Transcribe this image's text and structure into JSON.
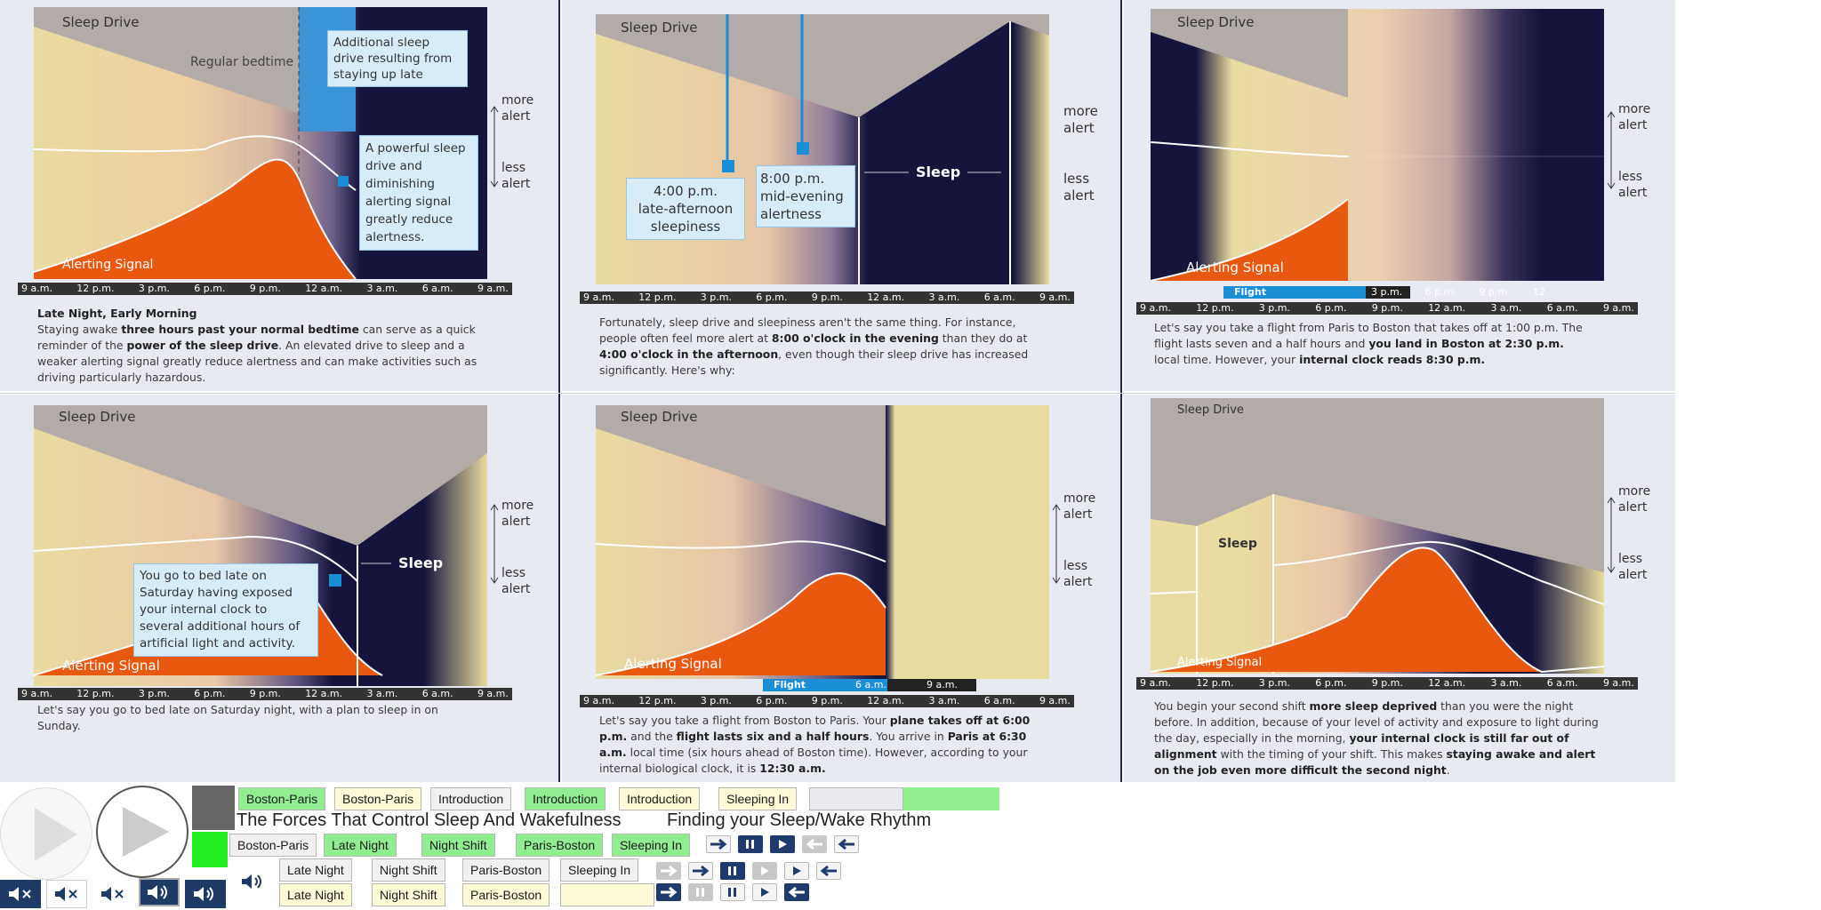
{
  "times_a": [
    "9 a.m.",
    "12 p.m.",
    "3 p.m.",
    "6 p.m.",
    "9 p.m.",
    "12 a.m.",
    "3 a.m.",
    "6 a.m.",
    "9 a.m."
  ],
  "common": {
    "sleep_drive": "Sleep Drive",
    "alerting_signal": "Alerting Signal",
    "more": "more",
    "less": "less",
    "alert": "alert",
    "sleep": "Sleep",
    "flight": "Flight"
  },
  "panel1": {
    "regular_bedtime": "Regular bedtime",
    "callout1": "Additional sleep drive resulting from staying up late",
    "callout2": "A powerful sleep drive and diminishing alerting signal greatly reduce alertness.",
    "caption_title": "Late Night, Early Morning",
    "caption_parts": [
      "Staying awake ",
      "three hours past your normal bedtime",
      " can serve as a quick reminder of the ",
      "power of the sleep drive",
      ". An elevated drive to sleep and a weaker alerting signal greatly reduce alertness and can make activities such as driving particularly hazardous."
    ]
  },
  "panel2": {
    "callout_a_time": "4:00 p.m.",
    "callout_a_text": "late-afternoon sleepiness",
    "callout_b_time": "8:00 p.m.",
    "callout_b_text": "mid-evening alertness",
    "caption_parts": [
      "Fortunately, sleep drive and sleepiness aren't the same thing. For instance, people often feel more alert at ",
      "8:00 o'clock in the evening",
      " than they do at ",
      "4:00 o'clock in the afternoon",
      ", even though their sleep drive has increased significantly. Here's why:"
    ]
  },
  "panel3": {
    "sub_times": [
      "3 p.m.",
      "6 p.m.",
      "9 p.m.",
      "12"
    ],
    "caption_parts": [
      "Let's say you take a flight from Paris to Boston that takes off at 1:00 p.m. The flight lasts seven and a half hours and ",
      "you land in Boston at 2:30 p.m.",
      " local time. However, your ",
      "internal clock reads 8:30 p.m."
    ]
  },
  "panel4": {
    "callout": "You go to bed late on Saturday having exposed your internal clock to several additional hours of artificial light and activity.",
    "caption": "Let's say you go to bed late on Saturday night, with a plan to sleep in on Sunday."
  },
  "panel5": {
    "flight_time": "6 a.m.",
    "flight_extra": "9 a.m.",
    "caption_parts": [
      "Let's say you take a flight from Boston to Paris. Your ",
      "plane takes off at 6:00 p.m.",
      " and the ",
      "flight lasts six and a half hours",
      ". You arrive in ",
      "Paris at 6:30 a.m.",
      " local time (six hours ahead of Boston time). However, according to your internal biological clock, it is ",
      "12:30 a.m."
    ]
  },
  "panel6": {
    "caption_parts": [
      "You begin your second shift ",
      "more sleep deprived",
      " than you were the night before. In addition, because of your level of activity and exposure to light during the day, especially in the morning, ",
      "your internal clock is still far out of alignment",
      " with the timing of your shift. This makes ",
      "staying awake and alert on the job even more difficult the second night",
      "."
    ]
  },
  "nav": {
    "row1": [
      "Boston-Paris",
      "Boston-Paris",
      "Introduction",
      "Introduction",
      "Introduction",
      "Sleeping In",
      "",
      ""
    ],
    "row2": [
      "Boston-Paris",
      "Late Night",
      "Night Shift",
      "Paris-Boston",
      "Sleeping In"
    ],
    "row3": [
      "Late Night",
      "Night Shift",
      "Paris-Boston",
      "Sleeping In"
    ],
    "row4": [
      "Late Night",
      "Night Shift",
      "Paris-Boston",
      ""
    ],
    "title1": "The Forces That Control Sleep And Wakefulness",
    "title2": "Finding your Sleep/Wake Rhythm"
  },
  "colors": {
    "accent_blue": "#1a8fd8",
    "alert_orange": "#e8580e",
    "night": "#12123a",
    "green": "#90ee90",
    "cream": "#fdfad6"
  }
}
